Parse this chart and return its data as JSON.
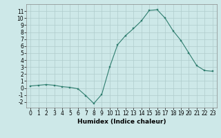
{
  "x": [
    0,
    1,
    2,
    3,
    4,
    5,
    6,
    7,
    8,
    9,
    10,
    11,
    12,
    13,
    14,
    15,
    16,
    17,
    18,
    19,
    20,
    21,
    22,
    23
  ],
  "y": [
    0.3,
    0.4,
    0.5,
    0.4,
    0.2,
    0.1,
    -0.1,
    -1.1,
    -2.2,
    -0.9,
    3.0,
    6.2,
    7.5,
    8.5,
    9.6,
    11.1,
    11.2,
    10.0,
    8.2,
    6.8,
    5.0,
    3.2,
    2.5,
    2.4
  ],
  "line_color": "#2e7d6e",
  "marker": "s",
  "marker_size": 1.8,
  "bg_color": "#cde8e8",
  "grid_color": "#b0cccc",
  "xlabel": "Humidex (Indice chaleur)",
  "xlim": [
    -0.5,
    23.5
  ],
  "ylim": [
    -2.8,
    12.0
  ],
  "yticks": [
    -2,
    -1,
    0,
    1,
    2,
    3,
    4,
    5,
    6,
    7,
    8,
    9,
    10,
    11
  ],
  "xticks": [
    0,
    1,
    2,
    3,
    4,
    5,
    6,
    7,
    8,
    9,
    10,
    11,
    12,
    13,
    14,
    15,
    16,
    17,
    18,
    19,
    20,
    21,
    22,
    23
  ],
  "tick_fontsize": 5.5,
  "xlabel_fontsize": 6.5,
  "linewidth": 0.8
}
